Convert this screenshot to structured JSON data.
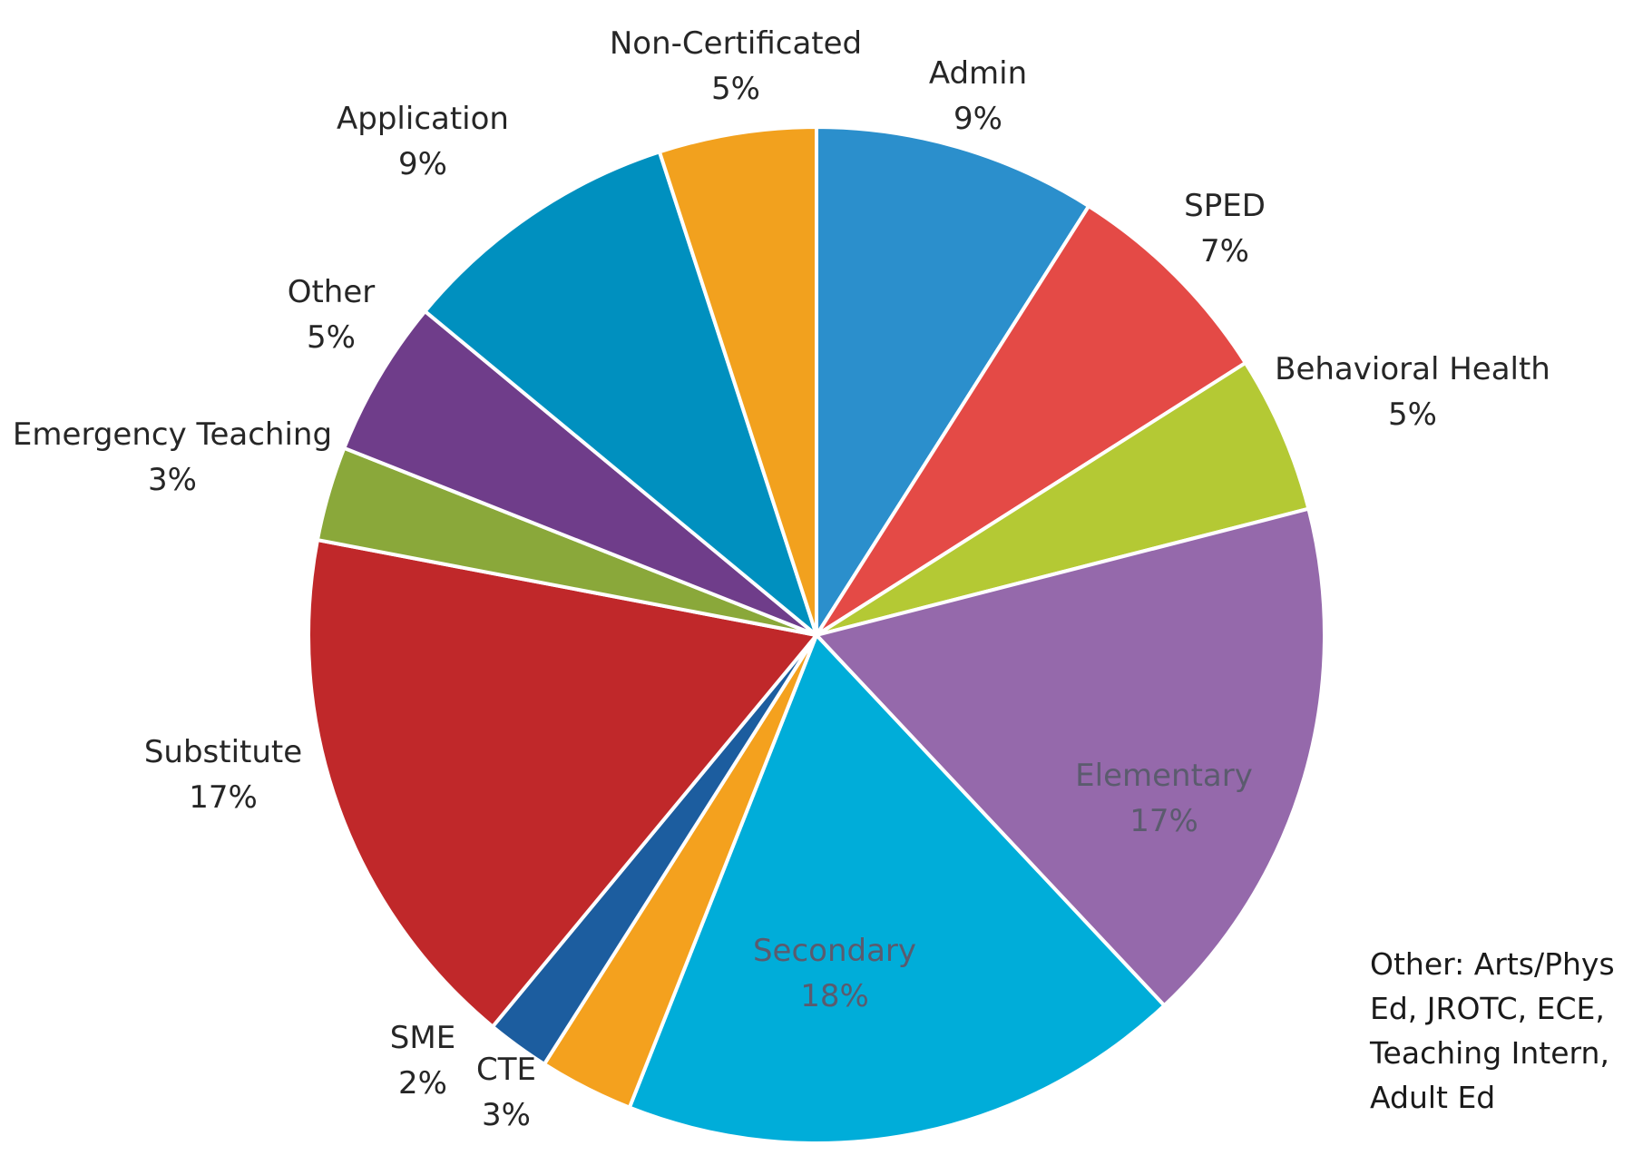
{
  "chart_data": {
    "type": "pie",
    "title": "",
    "start": "top",
    "direction": "clockwise",
    "slices": [
      {
        "label": "Admin",
        "value": 9,
        "value_label": "9%",
        "color": "#2b8fcc"
      },
      {
        "label": "SPED",
        "value": 7,
        "value_label": "7%",
        "color": "#e44a46"
      },
      {
        "label": "Behavioral Health",
        "value": 5,
        "value_label": "5%",
        "color": "#b4c934"
      },
      {
        "label": "Elementary",
        "value": 17,
        "value_label": "17%",
        "color": "#9569ab"
      },
      {
        "label": "Secondary",
        "value": 18,
        "value_label": "18%",
        "color": "#00add9"
      },
      {
        "label": "CTE",
        "value": 3,
        "value_label": "3%",
        "color": "#f4a11e"
      },
      {
        "label": "SME",
        "value": 2,
        "value_label": "2%",
        "color": "#1c5d9f"
      },
      {
        "label": "Substitute",
        "value": 17,
        "value_label": "17%",
        "color": "#c0282a"
      },
      {
        "label": "Emergency Teaching",
        "value": 3,
        "value_label": "3%",
        "color": "#8aa83a"
      },
      {
        "label": "Other",
        "value": 5,
        "value_label": "5%",
        "color": "#6f3d8a"
      },
      {
        "label": "Application",
        "value": 9,
        "value_label": "9%",
        "color": "#0090bf"
      },
      {
        "label": "Non-Certificated",
        "value": 5,
        "value_label": "5%",
        "color": "#f2a11e"
      }
    ]
  },
  "note": {
    "text": "Other: Arts/Phys Ed, JROTC, ECE, Teaching Intern, Adult Ed"
  }
}
